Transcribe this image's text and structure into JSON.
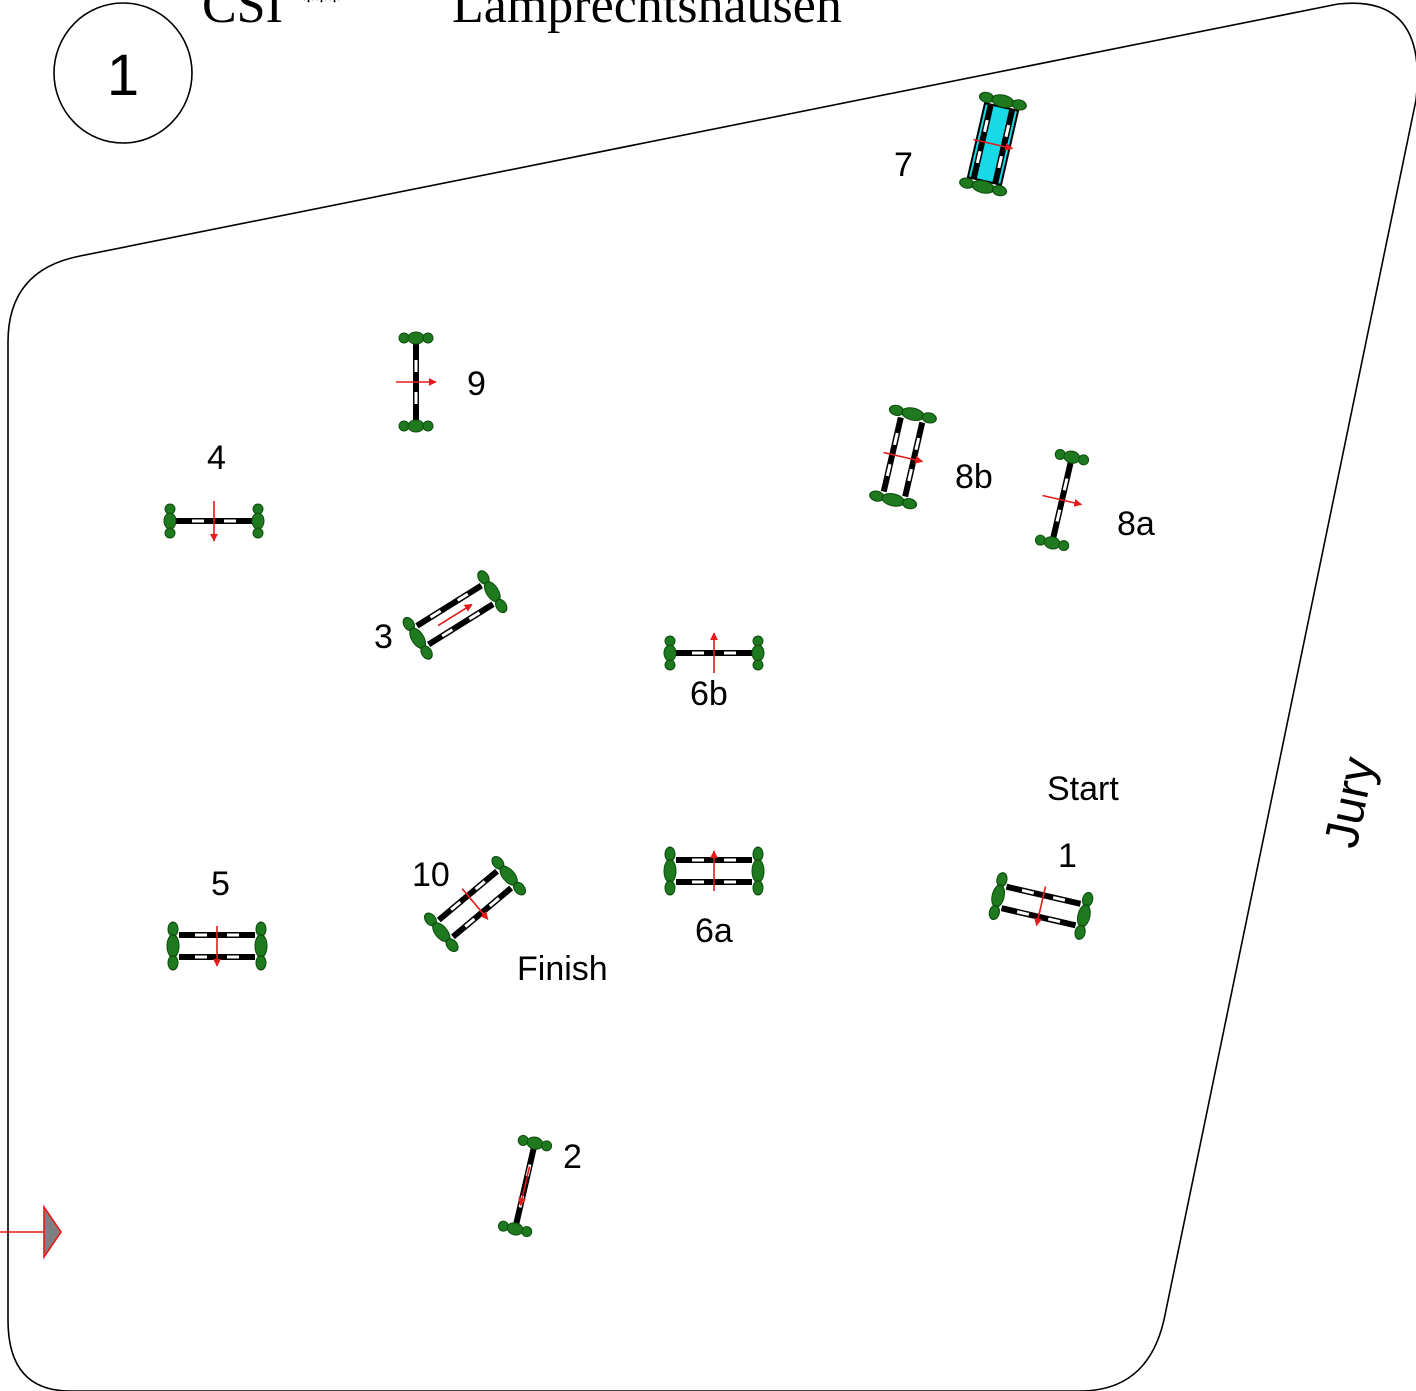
{
  "title": {
    "prefix": "CSI",
    "stars": "***",
    "venue": "Lamprechtshausen"
  },
  "course_number": "1",
  "jury_label": "Jury",
  "start_label": "Start",
  "finish_label": "Finish",
  "colors": {
    "outline": "#000000",
    "flowers": "#1f7a1f",
    "direction_arrow": "#e31b1b",
    "water": "#17d9e8",
    "entrance_marker": "#808080"
  },
  "obstacles": [
    {
      "number": "1",
      "kind": "oxer"
    },
    {
      "number": "2",
      "kind": "vertical"
    },
    {
      "number": "3",
      "kind": "oxer"
    },
    {
      "number": "4",
      "kind": "vertical"
    },
    {
      "number": "5",
      "kind": "oxer"
    },
    {
      "number": "6a",
      "kind": "oxer"
    },
    {
      "number": "6b",
      "kind": "vertical"
    },
    {
      "number": "7",
      "kind": "water-oxer"
    },
    {
      "number": "8a",
      "kind": "vertical"
    },
    {
      "number": "8b",
      "kind": "oxer"
    },
    {
      "number": "9",
      "kind": "vertical"
    },
    {
      "number": "10",
      "kind": "oxer"
    }
  ]
}
